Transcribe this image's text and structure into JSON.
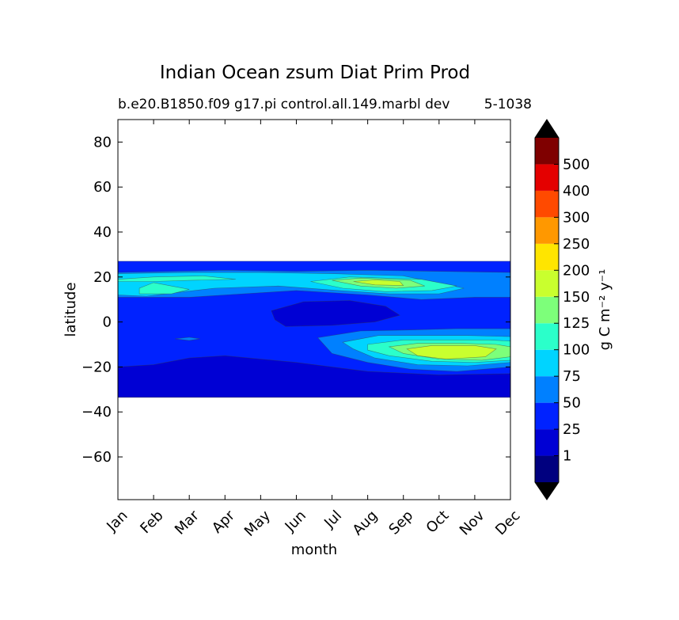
{
  "figure": {
    "suptitle": "Indian Ocean zsum Diat Prim Prod",
    "subtitle_left": "b.e20.B1850.f09 g17.pi control.all.149.marbl dev",
    "subtitle_right": "5-1038"
  },
  "chart_data": {
    "type": "heatmap",
    "title": "Indian Ocean zsum Diat Prim Prod",
    "xlabel": "month",
    "ylabel": "latitude",
    "x_categories": [
      "Jan",
      "Feb",
      "Mar",
      "Apr",
      "May",
      "Jun",
      "Jul",
      "Aug",
      "Sep",
      "Oct",
      "Nov",
      "Dec"
    ],
    "x_tick_rotation_deg": 45,
    "y_ticks": [
      80,
      60,
      40,
      20,
      0,
      -20,
      -40,
      -60
    ],
    "y_tick_labels": [
      "80",
      "60",
      "40",
      "20",
      "0",
      "−20",
      "−40",
      "−60"
    ],
    "ylim": [
      -79,
      90
    ],
    "grid": false,
    "data_lat_range": [
      -33.5,
      27
    ],
    "colorbar": {
      "label": "g C m⁻² y⁻¹",
      "levels": [
        0,
        1,
        25,
        50,
        75,
        100,
        125,
        150,
        200,
        250,
        300,
        400,
        500,
        600
      ],
      "tick_labels": [
        "1",
        "25",
        "50",
        "75",
        "100",
        "125",
        "150",
        "200",
        "250",
        "300",
        "400",
        "500"
      ],
      "colors": [
        "#00007f",
        "#0000d4",
        "#0022ff",
        "#0080ff",
        "#00d4ff",
        "#2bffca",
        "#7dff7a",
        "#c9ff2e",
        "#ffe500",
        "#ff9800",
        "#ff4a00",
        "#e40000",
        "#7f0000"
      ],
      "extend_under_color": "#000000",
      "extend_over_color": "#000000"
    },
    "regions": [
      {
        "name": "band-base",
        "value": 30,
        "points": [
          [
            0,
            -33.5
          ],
          [
            11,
            -33.5
          ],
          [
            11,
            27
          ],
          [
            0,
            27
          ]
        ]
      },
      {
        "name": "south-deep",
        "value": 15,
        "points": [
          [
            0,
            -33.5
          ],
          [
            11,
            -33.5
          ],
          [
            11,
            -23
          ],
          [
            9,
            -23.5
          ],
          [
            7,
            -22
          ],
          [
            5,
            -18
          ],
          [
            3,
            -15
          ],
          [
            2,
            -16
          ],
          [
            1,
            -19
          ],
          [
            0,
            -20
          ]
        ]
      },
      {
        "name": "central-low",
        "value": 10,
        "points": [
          [
            4.3,
            5
          ],
          [
            5.2,
            9
          ],
          [
            6.5,
            9.5
          ],
          [
            7.5,
            7
          ],
          [
            7.9,
            3
          ],
          [
            7.2,
            0
          ],
          [
            6,
            -1.5
          ],
          [
            4.7,
            -2
          ],
          [
            4.4,
            1
          ]
        ]
      },
      {
        "name": "south-bloom-50",
        "value": 60,
        "points": [
          [
            5.6,
            -7
          ],
          [
            6.8,
            -4
          ],
          [
            8.3,
            -3.5
          ],
          [
            9.5,
            -3
          ],
          [
            11,
            -3
          ],
          [
            11,
            -20
          ],
          [
            9.5,
            -22
          ],
          [
            8.2,
            -21
          ],
          [
            7,
            -18
          ],
          [
            6,
            -14
          ]
        ]
      },
      {
        "name": "south-bloom-75",
        "value": 85,
        "points": [
          [
            6.3,
            -9
          ],
          [
            7.3,
            -6
          ],
          [
            8.6,
            -6
          ],
          [
            9.8,
            -6
          ],
          [
            11,
            -6.5
          ],
          [
            11,
            -18
          ],
          [
            9.8,
            -19.5
          ],
          [
            8.4,
            -19
          ],
          [
            7.2,
            -16
          ],
          [
            6.6,
            -12
          ]
        ]
      },
      {
        "name": "south-bloom-100",
        "value": 110,
        "points": [
          [
            7,
            -10
          ],
          [
            8,
            -8
          ],
          [
            9.2,
            -8
          ],
          [
            10.4,
            -8
          ],
          [
            11,
            -8.5
          ],
          [
            11,
            -17
          ],
          [
            10,
            -18
          ],
          [
            8.8,
            -17.5
          ],
          [
            7.6,
            -15
          ],
          [
            7,
            -12.5
          ]
        ]
      },
      {
        "name": "south-bloom-125",
        "value": 140,
        "points": [
          [
            7.6,
            -11
          ],
          [
            8.4,
            -9.5
          ],
          [
            9.6,
            -9.5
          ],
          [
            10.6,
            -10
          ],
          [
            11,
            -11
          ],
          [
            11,
            -15.5
          ],
          [
            10.2,
            -17
          ],
          [
            9,
            -16.5
          ],
          [
            8,
            -14
          ]
        ]
      },
      {
        "name": "south-bloom-150",
        "value": 170,
        "points": [
          [
            8.1,
            -12
          ],
          [
            8.8,
            -10.5
          ],
          [
            10,
            -10.5
          ],
          [
            10.6,
            -12
          ],
          [
            10.3,
            -15.5
          ],
          [
            9.2,
            -16.5
          ],
          [
            8.4,
            -15
          ]
        ]
      },
      {
        "name": "north-band-50",
        "value": 60,
        "points": [
          [
            0,
            11
          ],
          [
            2,
            11
          ],
          [
            3,
            12
          ],
          [
            5,
            14
          ],
          [
            7,
            12
          ],
          [
            8.5,
            10
          ],
          [
            10,
            11
          ],
          [
            11,
            11
          ],
          [
            11,
            22
          ],
          [
            7,
            23
          ],
          [
            5,
            22.5
          ],
          [
            3,
            23
          ],
          [
            0,
            22
          ]
        ]
      },
      {
        "name": "north-band-75",
        "value": 85,
        "points": [
          [
            0,
            12
          ],
          [
            0.8,
            11.5
          ],
          [
            1.6,
            13
          ],
          [
            2.7,
            15
          ],
          [
            4.5,
            16
          ],
          [
            6.2,
            14
          ],
          [
            7.6,
            12.5
          ],
          [
            9,
            12.5
          ],
          [
            9.7,
            15
          ],
          [
            8,
            20.5
          ],
          [
            6,
            21.5
          ],
          [
            4,
            22
          ],
          [
            2,
            22
          ],
          [
            0,
            21.5
          ]
        ]
      },
      {
        "name": "north-band-100",
        "value": 110,
        "points": [
          [
            0.6,
            12.5
          ],
          [
            1.5,
            12.5
          ],
          [
            2,
            14.5
          ],
          [
            1.5,
            16
          ],
          [
            1,
            17.5
          ],
          [
            0.6,
            15
          ]
        ]
      },
      {
        "name": "north-band-100b",
        "value": 110,
        "points": [
          [
            5.4,
            18
          ],
          [
            6.3,
            15
          ],
          [
            7.5,
            13.5
          ],
          [
            8.8,
            14
          ],
          [
            9.5,
            16
          ],
          [
            8.5,
            19
          ],
          [
            6.5,
            20
          ]
        ]
      },
      {
        "name": "north-band-125",
        "value": 140,
        "points": [
          [
            6,
            18.5
          ],
          [
            6.8,
            16
          ],
          [
            7.8,
            15
          ],
          [
            8.6,
            16
          ],
          [
            8.2,
            18.5
          ],
          [
            6.8,
            19.5
          ]
        ]
      },
      {
        "name": "north-band-150",
        "value": 170,
        "points": [
          [
            6.6,
            18
          ],
          [
            7.2,
            16.5
          ],
          [
            8,
            16.2
          ],
          [
            7.9,
            18
          ],
          [
            7.2,
            18.7
          ]
        ]
      },
      {
        "name": "nw-coast-100",
        "value": 110,
        "points": [
          [
            0,
            19
          ],
          [
            1,
            20
          ],
          [
            2.4,
            20.5
          ],
          [
            3.3,
            19
          ],
          [
            2,
            18.5
          ],
          [
            1,
            18
          ],
          [
            0,
            18
          ]
        ]
      },
      {
        "name": "lat-8-patch",
        "value": 60,
        "points": [
          [
            1.6,
            -7.5
          ],
          [
            2,
            -6.8
          ],
          [
            2.3,
            -7.5
          ],
          [
            2,
            -8.2
          ]
        ]
      }
    ]
  }
}
